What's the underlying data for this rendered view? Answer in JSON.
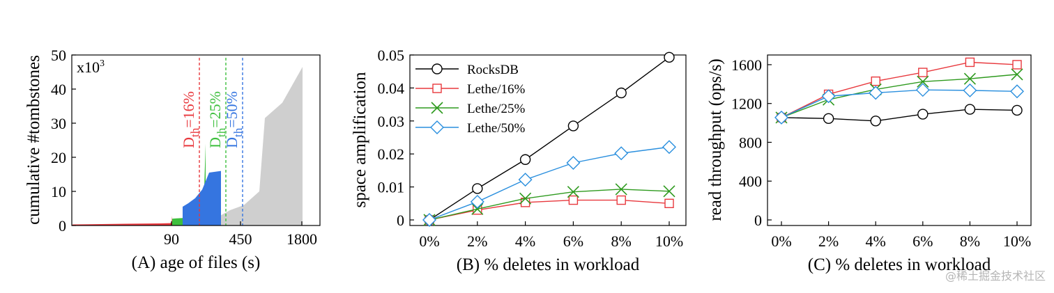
{
  "watermark": "@稀土掘金技术社区",
  "chart_data": [
    {
      "type": "area",
      "xlabel": "(A) age of files (s)",
      "ylabel": "cumulative #tombstones",
      "multiplier_label": "x10",
      "multiplier_exp": "3",
      "ylim": [
        0,
        50
      ],
      "yticks": [
        "0",
        "10",
        "20",
        "30",
        "40",
        "50"
      ],
      "xticks": [
        "90",
        "450",
        "1800"
      ],
      "grid": false,
      "thresholds": [
        {
          "base": "D",
          "sub": "th",
          "suffix": "=16%",
          "color": "#e8383d"
        },
        {
          "base": "D",
          "sub": "th",
          "suffix": "=25%",
          "color": "#3dbf3d"
        },
        {
          "base": "D",
          "sub": "th",
          "suffix": "=50%",
          "color": "#3575e0"
        }
      ],
      "regions": [
        {
          "color": "#e8383d",
          "y": [
            0.3,
            0.5,
            0.6,
            0.7,
            0.8,
            2.8
          ]
        },
        {
          "color": "#3dbf3d",
          "y": [
            2.0,
            2.2,
            2.5,
            3.5,
            5.0,
            24.0
          ]
        },
        {
          "color": "#3575e0",
          "y": [
            5.5,
            6.5,
            8.0,
            10.5,
            15.5,
            16.0
          ]
        },
        {
          "color": "#cfcfcf",
          "y": [
            3.0,
            4.5,
            6.0,
            10.0,
            31.5,
            36.0,
            46.5
          ]
        }
      ]
    },
    {
      "type": "line",
      "xlabel": "(B) % deletes in workload",
      "ylabel": "space amplification",
      "categories": [
        "0%",
        "2%",
        "4%",
        "6%",
        "8%",
        "10%"
      ],
      "ylim": [
        0,
        0.05
      ],
      "yticks": [
        "0",
        "0.01",
        "0.02",
        "0.03",
        "0.04",
        "0.05"
      ],
      "grid": false,
      "legend_position": "top-left",
      "series": [
        {
          "name": "RocksDB",
          "color": "#000000",
          "marker": "circle",
          "values": [
            0,
            0.0095,
            0.0183,
            0.0285,
            0.0385,
            0.0493
          ]
        },
        {
          "name": "Lethe/16%",
          "color": "#e8383d",
          "marker": "square",
          "values": [
            0,
            0.003,
            0.0053,
            0.006,
            0.006,
            0.005
          ]
        },
        {
          "name": "Lethe/25%",
          "color": "#2e9a1e",
          "marker": "x",
          "values": [
            0,
            0.0033,
            0.0065,
            0.0085,
            0.0093,
            0.0087
          ]
        },
        {
          "name": "Lethe/50%",
          "color": "#2a8fde",
          "marker": "diamond",
          "values": [
            0,
            0.0055,
            0.0122,
            0.0173,
            0.0202,
            0.0221
          ]
        }
      ]
    },
    {
      "type": "line",
      "xlabel": "(C) % deletes in workload",
      "ylabel": "read throughput (ops/s)",
      "categories": [
        "0%",
        "2%",
        "4%",
        "6%",
        "8%",
        "10%"
      ],
      "ylim": [
        0,
        1700
      ],
      "yticks": [
        "0",
        "400",
        "800",
        "1200",
        "1600"
      ],
      "ytick_values": [
        0,
        400,
        800,
        1200,
        1600
      ],
      "grid": false,
      "series": [
        {
          "name": "RocksDB",
          "color": "#000000",
          "marker": "circle",
          "values": [
            1055,
            1045,
            1020,
            1090,
            1140,
            1130
          ]
        },
        {
          "name": "Lethe/16%",
          "color": "#e8383d",
          "marker": "square",
          "values": [
            1055,
            1295,
            1430,
            1520,
            1625,
            1600
          ]
        },
        {
          "name": "Lethe/25%",
          "color": "#2e9a1e",
          "marker": "x",
          "values": [
            1055,
            1240,
            1345,
            1425,
            1455,
            1500
          ]
        },
        {
          "name": "Lethe/50%",
          "color": "#2a8fde",
          "marker": "diamond",
          "values": [
            1055,
            1275,
            1310,
            1340,
            1335,
            1325
          ]
        }
      ]
    }
  ]
}
